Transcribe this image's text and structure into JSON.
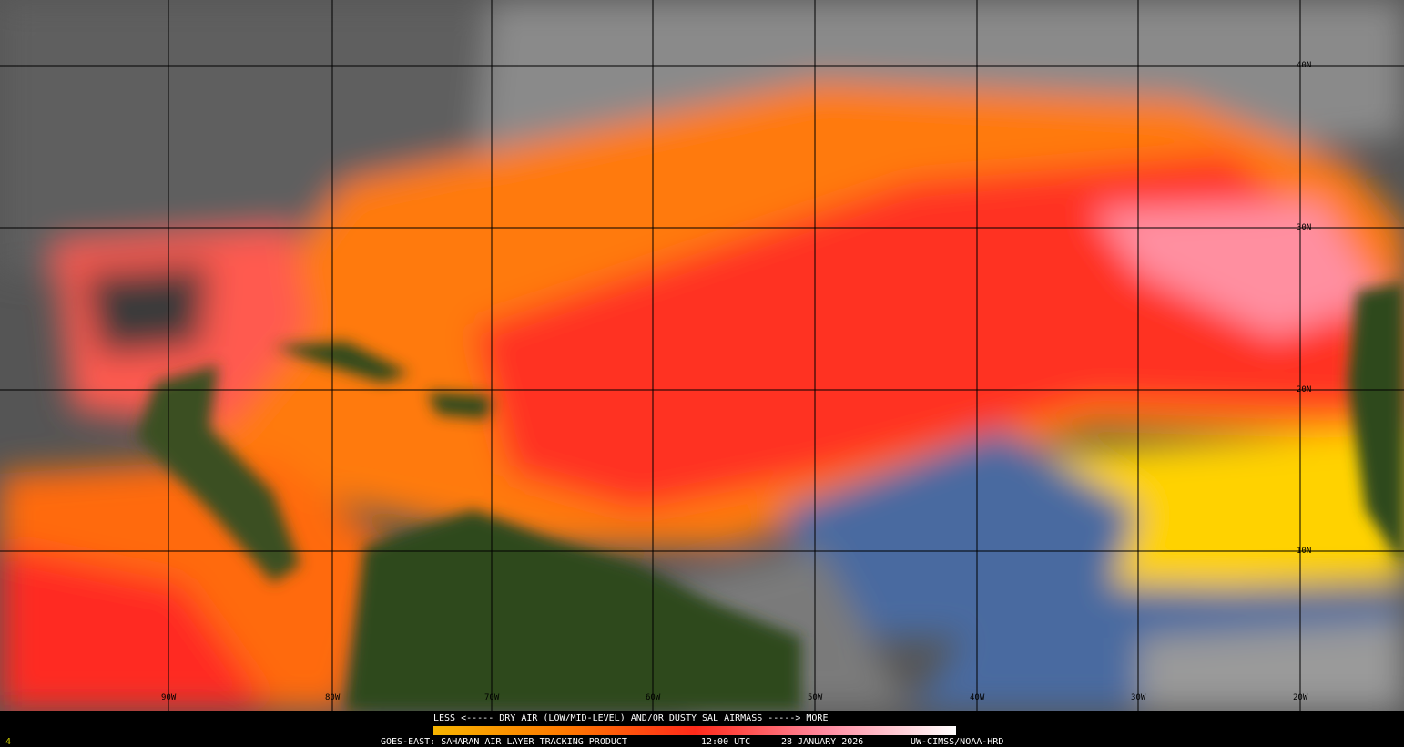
{
  "map": {
    "lat_labels": [
      "40N",
      "30N",
      "20N",
      "10N"
    ],
    "lon_labels": [
      "90W",
      "80W",
      "70W",
      "60W",
      "50W",
      "40W",
      "30W",
      "20W"
    ],
    "corner_label": "4",
    "legend": {
      "text": "LESS <----- DRY AIR (LOW/MID-LEVEL) AND/OR DUSTY SAL AIRMASS -----> MORE"
    },
    "footer": {
      "product": "GOES-EAST: SAHARAN AIR LAYER TRACKING PRODUCT",
      "time": "12:00 UTC",
      "date": "28 JANUARY 2026",
      "credit": "UW-CIMSS/NOAA-HRD"
    }
  }
}
